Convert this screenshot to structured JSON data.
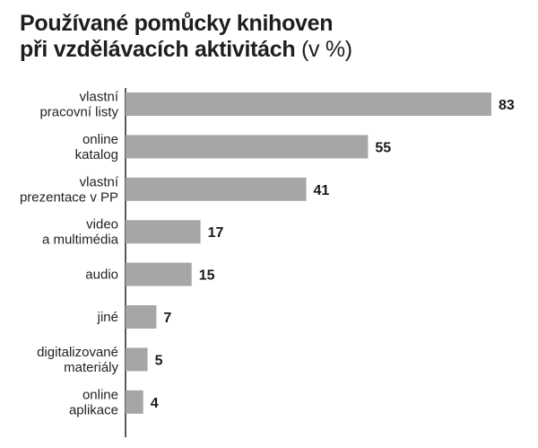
{
  "title": {
    "line1": "Používané pomůcky knihoven",
    "line2": "při vzdělávacích aktivitách",
    "unit": "(v %)"
  },
  "colors": {
    "bar": "#a6a6a6",
    "axis": "#000000",
    "text": "#222222"
  },
  "chart_data": {
    "type": "bar",
    "orientation": "horizontal",
    "title": "Používané pomůcky knihoven při vzdělávacích aktivitách (v %)",
    "categories": [
      [
        "vlastní",
        "pracovní listy"
      ],
      [
        "online",
        "katalog"
      ],
      [
        "vlastní",
        "prezentace v PP"
      ],
      [
        "video",
        "a multimédia"
      ],
      [
        "audio"
      ],
      [
        "jiné"
      ],
      [
        "digitalizované",
        "materiály"
      ],
      [
        "online",
        "aplikace"
      ]
    ],
    "values": [
      83,
      55,
      41,
      17,
      15,
      7,
      5,
      4
    ],
    "xlim": [
      0,
      83
    ],
    "grid": false,
    "legend": "none"
  }
}
